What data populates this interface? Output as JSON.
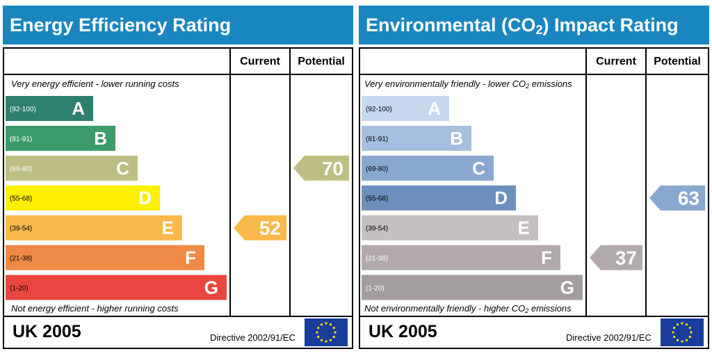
{
  "chart_data": [
    {
      "type": "bar",
      "title_parts": {
        "main": "Energy Efficiency Rating",
        "pre": "Energy Efficiency Rating",
        "sub": "",
        "post": ""
      },
      "column_headers": {
        "current": "Current",
        "potential": "Potential"
      },
      "top_caption": {
        "pre": "Very energy efficient - lower running costs",
        "sub": "",
        "post": ""
      },
      "bottom_caption": {
        "pre": "Not energy efficient - higher running costs",
        "sub": "",
        "post": ""
      },
      "bands": [
        {
          "letter": "A",
          "range": "(92-100)",
          "color": "#2f7f6e",
          "text_color": "#ffffff"
        },
        {
          "letter": "B",
          "range": "(81-91)",
          "color": "#3c9b6b",
          "text_color": "#ffffff"
        },
        {
          "letter": "C",
          "range": "(69-80)",
          "color": "#bcbe84",
          "text_color": "#ffffff"
        },
        {
          "letter": "D",
          "range": "(55-68)",
          "color": "#fff000",
          "text_color": "#000000"
        },
        {
          "letter": "E",
          "range": "(39-54)",
          "color": "#f9b94b",
          "text_color": "#000000"
        },
        {
          "letter": "F",
          "range": "(21-38)",
          "color": "#ee8a46",
          "text_color": "#000000"
        },
        {
          "letter": "G",
          "range": "(1-20)",
          "color": "#e9463f",
          "text_color": "#000000"
        }
      ],
      "current": {
        "value": 52,
        "band_index": 4,
        "color": "#f9b94b"
      },
      "potential": {
        "value": 70,
        "band_index": 2,
        "color": "#bcbe84"
      },
      "footer": {
        "region": "UK 2005",
        "directive": "Directive 2002/91/EC"
      }
    },
    {
      "type": "bar",
      "title_parts": {
        "pre": "Environmental (CO",
        "sub": "2",
        "post": ") Impact Rating"
      },
      "column_headers": {
        "current": "Current",
        "potential": "Potential"
      },
      "top_caption": {
        "pre": "Very environmentally friendly - lower CO",
        "sub": "2",
        "post": " emissions"
      },
      "bottom_caption": {
        "pre": "Not environmentally friendly - higher CO",
        "sub": "2",
        "post": " emissions"
      },
      "bands": [
        {
          "letter": "A",
          "range": "(92-100)",
          "color": "#c7d9ef",
          "text_color": "#000000"
        },
        {
          "letter": "B",
          "range": "(81-91)",
          "color": "#a7bfdf",
          "text_color": "#000000"
        },
        {
          "letter": "C",
          "range": "(69-80)",
          "color": "#88a8d0",
          "text_color": "#000000"
        },
        {
          "letter": "D",
          "range": "(55-68)",
          "color": "#6c8fbd",
          "text_color": "#000000"
        },
        {
          "letter": "E",
          "range": "(39-54)",
          "color": "#c4bfc0",
          "text_color": "#000000"
        },
        {
          "letter": "F",
          "range": "(21-38)",
          "color": "#b2aaaa",
          "text_color": "#ffffff"
        },
        {
          "letter": "G",
          "range": "(1-20)",
          "color": "#a49d9d",
          "text_color": "#ffffff"
        }
      ],
      "current": {
        "value": 37,
        "band_index": 5,
        "color": "#b2aaaa"
      },
      "potential": {
        "value": 63,
        "band_index": 3,
        "color": "#88a8d0"
      },
      "footer": {
        "region": "UK 2005",
        "directive": "Directive 2002/91/EC"
      }
    }
  ],
  "eu_flag": {
    "name": "eu-flag-icon",
    "bg": "#1a3d9b",
    "star": "#ffe600"
  }
}
